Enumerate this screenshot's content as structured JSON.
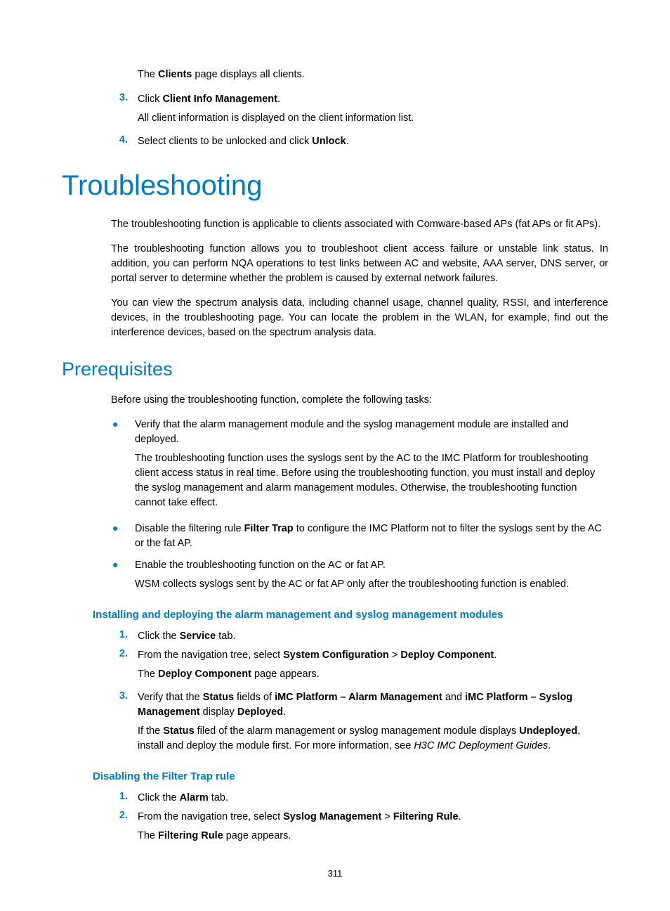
{
  "colors": {
    "accent": "#007cc2",
    "text": "#000000",
    "background": "#ffffff"
  },
  "typography": {
    "heading_font": "Segoe UI Light / Futura",
    "body_font": "Arial",
    "h1_size_pt": 30,
    "h2_size_pt": 20,
    "h3_size_pt": 11,
    "body_size_pt": 11
  },
  "intro_list": {
    "first_para": "The <b>Clients</b> page displays all clients.",
    "items": [
      {
        "num": "3.",
        "text": "Click <b>Client Info Management</b>.",
        "sub": "All client information is displayed on the client information list."
      },
      {
        "num": "4.",
        "text": "Select clients to be unlocked and click <b>Unlock</b>."
      }
    ]
  },
  "h1": "Troubleshooting",
  "troubleshooting_paras": [
    "The troubleshooting function is applicable to clients associated with Comware-based APs (fat APs or fit APs).",
    "The troubleshooting function allows you to troubleshoot client access failure or unstable link status. In addition, you can perform NQA operations to test links between AC and website, AAA server, DNS server, or portal server to determine whether the problem is caused by external network failures.",
    "You can view the spectrum analysis data, including channel usage, channel quality, RSSI, and interference devices, in the troubleshooting page. You can locate the problem in the WLAN, for example, find out the interference devices, based on the spectrum analysis data."
  ],
  "h2": "Prerequisites",
  "prereq_intro": "Before using the troubleshooting function, complete the following tasks:",
  "prereq_bullets": [
    {
      "text": "Verify that the alarm management module and the syslog management module are installed and deployed.",
      "sub": "The troubleshooting function uses the syslogs sent by the AC to the IMC Platform for troubleshooting client access status in real time. Before using the troubleshooting function, you must install and deploy the syslog management and alarm management modules. Otherwise, the troubleshooting function cannot take effect."
    },
    {
      "text": "Disable the filtering rule <b>Filter Trap</b> to configure the IMC Platform not to filter the syslogs sent by the AC or the fat AP."
    },
    {
      "text": "Enable the troubleshooting function on the AC or fat AP.",
      "sub": "WSM collects syslogs sent by the AC or fat AP only after the troubleshooting function is enabled."
    }
  ],
  "h3a": "Installing and deploying the alarm management and syslog management modules",
  "steps_a": [
    {
      "num": "1.",
      "text": "Click the <b>Service</b> tab."
    },
    {
      "num": "2.",
      "text": "From the navigation tree, select <b>System Configuration</b> > <b>Deploy Component</b>.",
      "sub": "The <b>Deploy Component</b> page appears."
    },
    {
      "num": "3.",
      "text": "Verify that the <b>Status</b> fields of <b>iMC Platform – Alarm Management</b> and <b>iMC Platform – Syslog Management</b> display <b>Deployed</b>.",
      "sub": "If the <b>Status</b> filed of the alarm management or syslog management module displays <b>Undeployed</b>, install and deploy the module first. For more information, see <i>H3C IMC Deployment Guides</i>."
    }
  ],
  "h3b": "Disabling the Filter Trap rule",
  "steps_b": [
    {
      "num": "1.",
      "text": "Click the <b>Alarm</b> tab."
    },
    {
      "num": "2.",
      "text": "From the navigation tree, select <b>Syslog Management</b> > <b>Filtering Rule</b>.",
      "sub": "The <b>Filtering Rule</b> page appears."
    }
  ],
  "page_number": "311"
}
